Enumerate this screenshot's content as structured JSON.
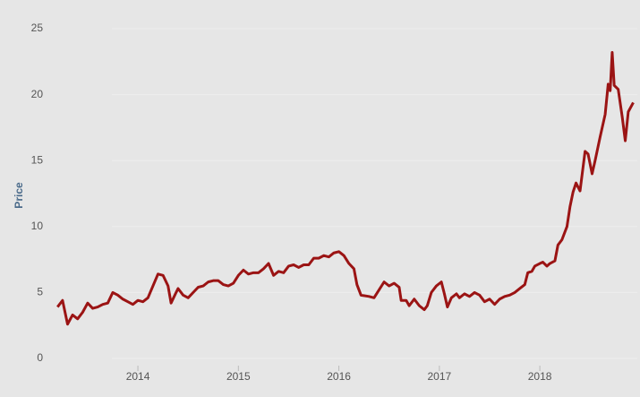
{
  "chart_data": {
    "type": "line",
    "y_label": "Price",
    "x": [
      2013.2,
      2013.25,
      2013.3,
      2013.35,
      2013.4,
      2013.45,
      2013.5,
      2013.55,
      2013.6,
      2013.65,
      2013.7,
      2013.75,
      2013.8,
      2013.85,
      2013.9,
      2013.95,
      2014.0,
      2014.05,
      2014.1,
      2014.15,
      2014.2,
      2014.25,
      2014.3,
      2014.33,
      2014.38,
      2014.4,
      2014.45,
      2014.5,
      2014.55,
      2014.6,
      2014.65,
      2014.7,
      2014.75,
      2014.8,
      2014.85,
      2014.9,
      2014.95,
      2015.0,
      2015.05,
      2015.1,
      2015.15,
      2015.2,
      2015.25,
      2015.3,
      2015.35,
      2015.4,
      2015.45,
      2015.5,
      2015.55,
      2015.6,
      2015.65,
      2015.7,
      2015.75,
      2015.8,
      2015.85,
      2015.9,
      2015.95,
      2016.0,
      2016.05,
      2016.1,
      2016.15,
      2016.18,
      2016.22,
      2016.3,
      2016.35,
      2016.4,
      2016.45,
      2016.5,
      2016.55,
      2016.6,
      2016.62,
      2016.67,
      2016.7,
      2016.75,
      2016.8,
      2016.85,
      2016.88,
      2016.92,
      2016.97,
      2017.02,
      2017.05,
      2017.08,
      2017.12,
      2017.17,
      2017.2,
      2017.25,
      2017.3,
      2017.35,
      2017.4,
      2017.45,
      2017.5,
      2017.55,
      2017.6,
      2017.65,
      2017.7,
      2017.75,
      2017.8,
      2017.85,
      2017.88,
      2017.92,
      2017.95,
      2018.0,
      2018.03,
      2018.07,
      2018.1,
      2018.15,
      2018.18,
      2018.22,
      2018.27,
      2018.3,
      2018.33,
      2018.36,
      2018.4,
      2018.45,
      2018.48,
      2018.52,
      2018.55,
      2018.6,
      2018.65,
      2018.68,
      2018.7,
      2018.72,
      2018.74,
      2018.78,
      2018.82,
      2018.85,
      2018.88,
      2018.93
    ],
    "series": [
      {
        "color": "#9b1414",
        "values": [
          3.9,
          4.4,
          2.6,
          3.3,
          3.0,
          3.5,
          4.2,
          3.8,
          3.9,
          4.1,
          4.2,
          5.0,
          4.8,
          4.5,
          4.3,
          4.1,
          4.4,
          4.3,
          4.6,
          5.5,
          6.4,
          6.3,
          5.5,
          4.2,
          5.0,
          5.3,
          4.8,
          4.6,
          5.0,
          5.4,
          5.5,
          5.8,
          5.9,
          5.9,
          5.6,
          5.5,
          5.7,
          6.3,
          6.7,
          6.4,
          6.5,
          6.5,
          6.8,
          7.2,
          6.3,
          6.6,
          6.5,
          7.0,
          7.1,
          6.9,
          7.1,
          7.1,
          7.6,
          7.6,
          7.8,
          7.7,
          8.0,
          8.1,
          7.8,
          7.2,
          6.8,
          5.6,
          4.8,
          4.7,
          4.6,
          5.2,
          5.8,
          5.5,
          5.7,
          5.4,
          4.4,
          4.4,
          4.0,
          4.5,
          4.0,
          3.7,
          4.0,
          5.0,
          5.5,
          5.8,
          4.9,
          3.9,
          4.6,
          4.9,
          4.6,
          4.9,
          4.7,
          5.0,
          4.8,
          4.3,
          4.5,
          4.1,
          4.5,
          4.7,
          4.8,
          5.0,
          5.3,
          5.6,
          6.5,
          6.6,
          7.0,
          7.2,
          7.3,
          7.0,
          7.2,
          7.4,
          8.6,
          9.0,
          10.0,
          11.5,
          12.6,
          13.3,
          12.7,
          15.7,
          15.5,
          14.0,
          15.0,
          16.8,
          18.5,
          20.8,
          20.3,
          23.2,
          20.7,
          20.4,
          18.3,
          16.5,
          18.7,
          19.4
        ]
      }
    ],
    "xlim": [
      2013.18,
      2018.97
    ],
    "xticks": [
      2014,
      2015,
      2016,
      2017,
      2018
    ],
    "ylim": [
      0,
      25
    ],
    "yticks": [
      0,
      5,
      10,
      15,
      20,
      25
    ],
    "grid": true
  }
}
